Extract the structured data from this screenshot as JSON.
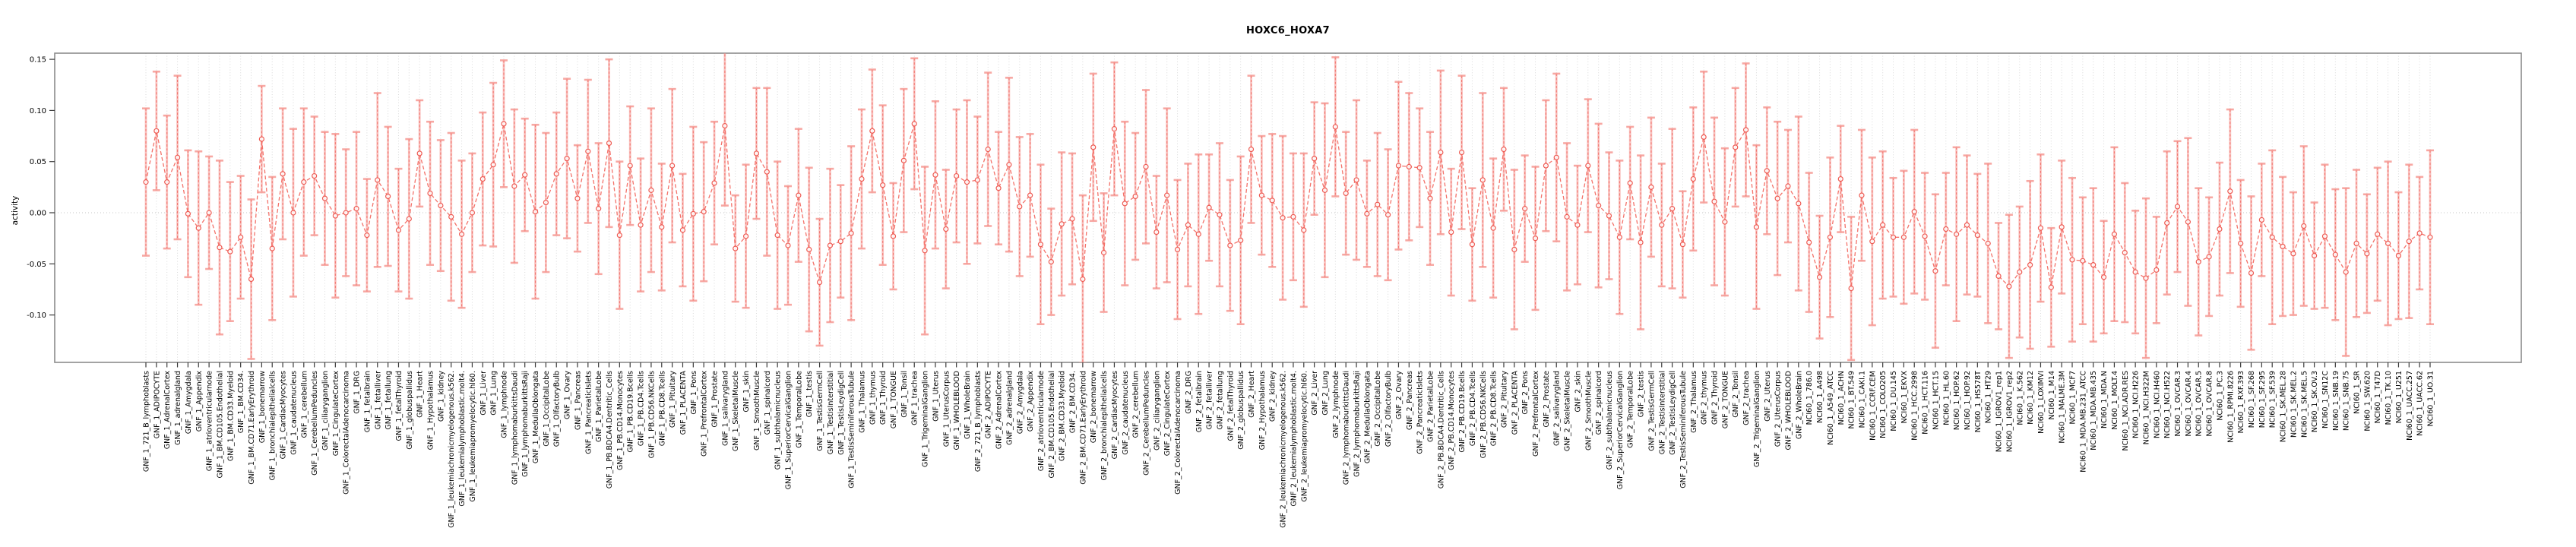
{
  "chart_data": {
    "type": "line",
    "subtype": "point-estimates-with-error-bars",
    "title": "HOXC6_HOXA7",
    "xlabel": "",
    "ylabel": "activity",
    "ylim": [
      -0.146,
      0.156
    ],
    "yticks": [
      0.15,
      0.1,
      0.05,
      0.0,
      -0.05,
      -0.1
    ],
    "ytick_labels": [
      "0.15",
      "0.10",
      "0.05",
      "0.00",
      "-0.05",
      "-0.10"
    ],
    "grid": "vertical-dotted-per-category, dotted zero line",
    "legend": "none",
    "colors": {
      "series_line": "#f4726a",
      "marker_stroke": "#ee5a52",
      "whisker": "#f5928c",
      "whisker_dash": "#ee5a52",
      "gridline": "#d9d9d9",
      "zero_line": "#c4c4c4",
      "box_border": "#8c8c8c",
      "tick": "#3a3a3a",
      "text": "#000000"
    },
    "categories": [
      "GNF_1_721_B_lymphoblasts",
      "GNF_1_ADIPOCYTE",
      "GNF_1_AdrenalCortex",
      "GNF_1_adrenalgland",
      "GNF_1_Amygdala",
      "GNF_1_Appendix",
      "GNF_1_atrioventricularnode",
      "GNF_1_BM.CD105.Endothelial",
      "GNF_1_BM.CD33.Myeloid",
      "GNF_1_BM.CD34.",
      "GNF_1_BM.CD71.EarlyErythroid",
      "GNF_1_bonemarrow",
      "GNF_1_bronchialepithelialcells",
      "GNF_1_CardiacMyocytes",
      "GNF_1_caudatenucleus",
      "GNF_1_cerebellum",
      "GNF_1_CerebellumPeduncles",
      "GNF_1_ciliaryganglion",
      "GNF_1_CingulateCortex",
      "GNF_1_ColorectalAdenocarcinoma",
      "GNF_1_DRG",
      "GNF_1_fetalbrain",
      "GNF_1_fetalliver",
      "GNF_1_fetallung",
      "GNF_1_fetalThyroid",
      "GNF_1_globuspallidus",
      "GNF_1_Heart",
      "GNF_1_Hypothalamus",
      "GNF_1_kidney",
      "GNF_1_leukemiachronicmyelogenous.k562.",
      "GNF_1_leukemialymphoblastic.molt4.",
      "GNF_1_leukemiapromyelocytic.hl60.",
      "GNF_1_Liver",
      "GNF_1_Lung",
      "GNF_1_lymphnode",
      "GNF_1_lymphomaburkittsDaudi",
      "GNF_1_lymphomaburkittsRaji",
      "GNF_1_MedullaOblongata",
      "GNF_1_OccipitalLobe",
      "GNF_1_OlfactoryBulb",
      "GNF_1_Ovary",
      "GNF_1_Pancreas",
      "GNF_1_PancreaticIslets",
      "GNF_1_ParietalLobe",
      "GNF_1_PB.BDCA4.Dentritic_Cells",
      "GNF_1_PB.CD14.Monocytes",
      "GNF_1_PB.CD19.Bcells",
      "GNF_1_PB.CD4.Tcells",
      "GNF_1_PB.CD56.NKCells",
      "GNF_1_PB.CD8.Tcells",
      "GNF_1_Pituitary",
      "GNF_1_PLACENTA",
      "GNF_1_Pons",
      "GNF_1_PrefrontalCortex",
      "GNF_1_Prostate",
      "GNF_1_salivarygland",
      "GNF_1_SkeletalMuscle",
      "GNF_1_skin",
      "GNF_1_SmoothMuscle",
      "GNF_1_spinalcord",
      "GNF_1_subthalamicnucleus",
      "GNF_1_SuperiorCervicalGanglion",
      "GNF_1_TemporalLobe",
      "GNF_1_testis",
      "GNF_1_TestisGermCell",
      "GNF_1_TestisInterstitial",
      "GNF_1_TestisLeydigCell",
      "GNF_1_TestisSeminiferousTubule",
      "GNF_1_Thalamus",
      "GNF_1_thymus",
      "GNF_1_Thyroid",
      "GNF_1_TONGUE",
      "GNF_1_Tonsil",
      "GNF_1_trachea",
      "GNF_1_TrigeminalGanglion",
      "GNF_1_Uterus",
      "GNF_1_UterusCorpus",
      "GNF_1_WHOLEBLOOD",
      "GNF_1_WholeBrain",
      "GNF_2_721_B_lymphoblasts",
      "GNF_2_ADIPOCYTE",
      "GNF_2_AdrenalCortex",
      "GNF_2_adrenalgland",
      "GNF_2_Amygdala",
      "GNF_2_Appendix",
      "GNF_2_atrioventricularnode",
      "GNF_2_BM.CD105.Endothelial",
      "GNF_2_BM.CD33.Myeloid",
      "GNF_2_BM.CD34.",
      "GNF_2_BM.CD71.EarlyErythroid",
      "GNF_2_bonemarrow",
      "GNF_2_bronchialepithelialcells",
      "GNF_2_CardiacMyocytes",
      "GNF_2_caudatenucleus",
      "GNF_2_cerebellum",
      "GNF_2_CerebellumPeduncles",
      "GNF_2_ciliaryganglion",
      "GNF_2_CingulateCortex",
      "GNF_2_ColorectalAdenocarcinoma",
      "GNF_2_DRG",
      "GNF_2_fetalbrain",
      "GNF_2_fetalliver",
      "GNF_2_fetallung",
      "GNF_2_fetalThyroid",
      "GNF_2_globuspallidus",
      "GNF_2_Heart",
      "GNF_2_Hypothalamus",
      "GNF_2_kidney",
      "GNF_2_leukemiachronicmyelogenous.k562.",
      "GNF_2_leukemialymphoblastic.molt4.",
      "GNF_2_leukemiapromyelocytic.hl60.",
      "GNF_2_Liver",
      "GNF_2_Lung",
      "GNF_2_lymphnode",
      "GNF_2_lymphomaburkittsDaudi",
      "GNF_2_lymphomaburkittsRaji",
      "GNF_2_MedullaOblongata",
      "GNF_2_OccipitalLobe",
      "GNF_2_OlfactoryBulb",
      "GNF_2_Ovary",
      "GNF_2_Pancreas",
      "GNF_2_PancreaticIslets",
      "GNF_2_ParietalLobe",
      "GNF_2_PB.BDCA4.Dentritic_Cells",
      "GNF_2_PB.CD14.Monocytes",
      "GNF_2_PB.CD19.Bcells",
      "GNF_2_PB.CD4.Tcells",
      "GNF_2_PB.CD56.NKCells",
      "GNF_2_PB.CD8.Tcells",
      "GNF_2_Pituitary",
      "GNF_2_PLACENTA",
      "GNF_2_Pons",
      "GNF_2_PrefrontalCortex",
      "GNF_2_Prostate",
      "GNF_2_salivarygland",
      "GNF_2_SkeletalMuscle",
      "GNF_2_skin",
      "GNF_2_SmoothMuscle",
      "GNF_2_spinalcord",
      "GNF_2_subthalamicnucleus",
      "GNF_2_SuperiorCervicalGanglion",
      "GNF_2_TemporalLobe",
      "GNF_2_testis",
      "GNF_2_TestisGermCell",
      "GNF_2_TestisInterstitial",
      "GNF_2_TestisLeydigCell",
      "GNF_2_TestisSeminiferousTubule",
      "GNF_2_Thalamus",
      "GNF_2_thymus",
      "GNF_2_Thyroid",
      "GNF_2_TONGUE",
      "GNF_2_Tonsil",
      "GNF_2_trachea",
      "GNF_2_TrigeminalGanglion",
      "GNF_2_Uterus",
      "GNF_2_UterusCorpus",
      "GNF_2_WHOLEBLOOD",
      "GNF_2_WholeBrain",
      "NCI60_1_786.0",
      "NCI60_1_A498",
      "NCI60_1_A549_ATCC",
      "NCI60_1_ACHN",
      "NCI60_1_BT.549",
      "NCI60_1_CAKI.1",
      "NCI60_1_CCRF.CEM",
      "NCI60_1_COLO205",
      "NCI60_1_DU.145",
      "NCI60_1_EKVX",
      "NCI60_1_HCC.2998",
      "NCI60_1_HCT.116",
      "NCI60_1_HCT.15",
      "NCI60_1_HL.60",
      "NCI60_1_HOP.62",
      "NCI60_1_HOP.92",
      "NCI60_1_HS578T",
      "NCI60_1_HT29",
      "NCI60_1_IGROV1_rep1",
      "NCI60_1_IGROV1_rep2",
      "NCI60_1_K.562",
      "NCI60_1_KM12",
      "NCI60_1_LOXIMVI",
      "NCI60_1_M14",
      "NCI60_1_MALME.3M",
      "NCI60_1_MCF7",
      "NCI60_1_MDA.MB.231_ATCC",
      "NCI60_1_MDA.MB.435",
      "NCI60_1_MDA.N",
      "NCI60_1_MOLT.4",
      "NCI60_1_NCI.ADR.RES",
      "NCI60_1_NCI.H226",
      "NCI60_1_NCI.H322M",
      "NCI60_1_NCI.H460",
      "NCI60_1_NCI.H522",
      "NCI60_1_OVCAR.3",
      "NCI60_1_OVCAR.4",
      "NCI60_1_OVCAR.5",
      "NCI60_1_OVCAR.8",
      "NCI60_1_PC.3",
      "NCI60_1_RPMI.8226",
      "NCI60_1_RXF.393",
      "NCI60_1_SF.268",
      "NCI60_1_SF.295",
      "NCI60_1_SF.539",
      "NCI60_1_SK.MEL.28",
      "NCI60_1_SK.MEL.2",
      "NCI60_1_SK.MEL.5",
      "NCI60_1_SK.OV.3",
      "NCI60_1_SN12C",
      "NCI60_1_SNB.19",
      "NCI60_1_SNB.75",
      "NCI60_1_SR",
      "NCI60_1_SW.620",
      "NCI60_1_T47D",
      "NCI60_1_TK.10",
      "NCI60_1_U251",
      "NCI60_1_UACC.257",
      "NCI60_1_UACC.62",
      "NCI60_1_UO.31"
    ],
    "values": [
      0.03,
      0.08,
      0.03,
      0.054,
      -0.001,
      -0.015,
      0.0,
      -0.034,
      -0.038,
      -0.024,
      -0.065,
      0.072,
      -0.035,
      0.038,
      0.0,
      0.03,
      0.036,
      0.014,
      -0.003,
      0.0,
      0.004,
      -0.022,
      0.032,
      0.016,
      -0.017,
      -0.006,
      0.058,
      0.019,
      0.007,
      -0.004,
      -0.021,
      0.0,
      0.033,
      0.047,
      0.087,
      0.026,
      0.037,
      0.001,
      0.01,
      0.038,
      0.053,
      0.014,
      0.06,
      0.004,
      0.068,
      -0.022,
      0.046,
      -0.012,
      0.022,
      -0.014,
      0.046,
      -0.017,
      -0.001,
      0.001,
      0.029,
      0.085,
      -0.035,
      -0.023,
      0.058,
      0.04,
      -0.022,
      -0.032,
      0.017,
      -0.036,
      -0.068,
      -0.032,
      -0.028,
      -0.02,
      0.033,
      0.08,
      0.027,
      -0.023,
      0.051,
      0.087,
      -0.037,
      0.037,
      -0.016,
      0.036,
      0.03,
      0.032,
      0.062,
      0.024,
      0.047,
      0.006,
      0.017,
      -0.031,
      -0.048,
      -0.011,
      -0.006,
      -0.065,
      0.064,
      -0.039,
      0.082,
      0.009,
      0.016,
      0.045,
      -0.019,
      0.017,
      -0.036,
      -0.012,
      -0.021,
      0.005,
      -0.002,
      -0.032,
      -0.027,
      0.062,
      0.017,
      0.012,
      -0.005,
      -0.004,
      -0.017,
      0.053,
      0.022,
      0.084,
      0.019,
      0.032,
      -0.001,
      0.008,
      -0.002,
      0.046,
      0.045,
      0.044,
      0.014,
      0.059,
      -0.019,
      0.059,
      -0.031,
      0.032,
      -0.015,
      0.062,
      -0.036,
      0.004,
      -0.025,
      0.046,
      0.054,
      -0.004,
      -0.012,
      0.046,
      0.007,
      -0.003,
      -0.024,
      0.029,
      -0.029,
      0.025,
      -0.012,
      0.004,
      -0.031,
      0.033,
      0.074,
      0.011,
      -0.009,
      0.064,
      0.081,
      -0.014,
      0.041,
      0.014,
      0.026,
      0.009,
      -0.029,
      -0.063,
      -0.024,
      0.033,
      -0.074,
      0.017,
      -0.028,
      -0.012,
      -0.024,
      -0.024,
      0.001,
      -0.023,
      -0.057,
      -0.016,
      -0.021,
      -0.012,
      -0.022,
      -0.03,
      -0.062,
      -0.072,
      -0.058,
      -0.051,
      -0.015,
      -0.073,
      -0.014,
      -0.046,
      -0.047,
      -0.051,
      -0.063,
      -0.021,
      -0.039,
      -0.058,
      -0.064,
      -0.056,
      -0.01,
      0.006,
      -0.009,
      -0.048,
      -0.043,
      -0.016,
      0.021,
      -0.03,
      -0.059,
      -0.007,
      -0.024,
      -0.033,
      -0.04,
      -0.013,
      -0.042,
      -0.023,
      -0.041,
      -0.058,
      -0.03,
      -0.04,
      -0.021,
      -0.03,
      -0.042,
      -0.028,
      -0.02,
      -0.024
    ],
    "ci_halfwidth": [
      0.072,
      0.058,
      0.065,
      0.08,
      0.062,
      0.075,
      0.055,
      0.085,
      0.068,
      0.06,
      0.078,
      0.052,
      0.07,
      0.064,
      0.082,
      0.072,
      0.058,
      0.065,
      0.08,
      0.062,
      0.075,
      0.055,
      0.085,
      0.068,
      0.06,
      0.078,
      0.052,
      0.07,
      0.064,
      0.082,
      0.072,
      0.058,
      0.065,
      0.08,
      0.062,
      0.075,
      0.055,
      0.085,
      0.068,
      0.06,
      0.078,
      0.052,
      0.07,
      0.064,
      0.082,
      0.072,
      0.058,
      0.065,
      0.08,
      0.062,
      0.075,
      0.055,
      0.085,
      0.068,
      0.06,
      0.078,
      0.052,
      0.07,
      0.064,
      0.082,
      0.072,
      0.058,
      0.065,
      0.08,
      0.062,
      0.075,
      0.055,
      0.085,
      0.068,
      0.06,
      0.078,
      0.052,
      0.07,
      0.064,
      0.082,
      0.072,
      0.058,
      0.065,
      0.08,
      0.062,
      0.075,
      0.055,
      0.085,
      0.068,
      0.06,
      0.078,
      0.052,
      0.07,
      0.064,
      0.082,
      0.072,
      0.058,
      0.065,
      0.08,
      0.062,
      0.075,
      0.055,
      0.085,
      0.068,
      0.06,
      0.078,
      0.052,
      0.07,
      0.064,
      0.082,
      0.072,
      0.058,
      0.065,
      0.08,
      0.062,
      0.075,
      0.055,
      0.085,
      0.068,
      0.06,
      0.078,
      0.052,
      0.07,
      0.064,
      0.082,
      0.072,
      0.058,
      0.065,
      0.08,
      0.062,
      0.075,
      0.055,
      0.085,
      0.068,
      0.06,
      0.078,
      0.052,
      0.07,
      0.064,
      0.082,
      0.072,
      0.058,
      0.065,
      0.08,
      0.062,
      0.075,
      0.055,
      0.085,
      0.068,
      0.06,
      0.078,
      0.052,
      0.07,
      0.064,
      0.082,
      0.072,
      0.058,
      0.065,
      0.08,
      0.062,
      0.075,
      0.055,
      0.085,
      0.068,
      0.06,
      0.078,
      0.052,
      0.07,
      0.064,
      0.082,
      0.072,
      0.058,
      0.065,
      0.08,
      0.062,
      0.075,
      0.055,
      0.085,
      0.068,
      0.06,
      0.078,
      0.052,
      0.07,
      0.064,
      0.082,
      0.072,
      0.058,
      0.065,
      0.08,
      0.062,
      0.075,
      0.055,
      0.085,
      0.068,
      0.06,
      0.078,
      0.052,
      0.07,
      0.064,
      0.082,
      0.072,
      0.058,
      0.065,
      0.08,
      0.062,
      0.075,
      0.055,
      0.085,
      0.068,
      0.06,
      0.078,
      0.052,
      0.07,
      0.064,
      0.082,
      0.072,
      0.058,
      0.065,
      0.08,
      0.062,
      0.075,
      0.055,
      0.085
    ]
  }
}
